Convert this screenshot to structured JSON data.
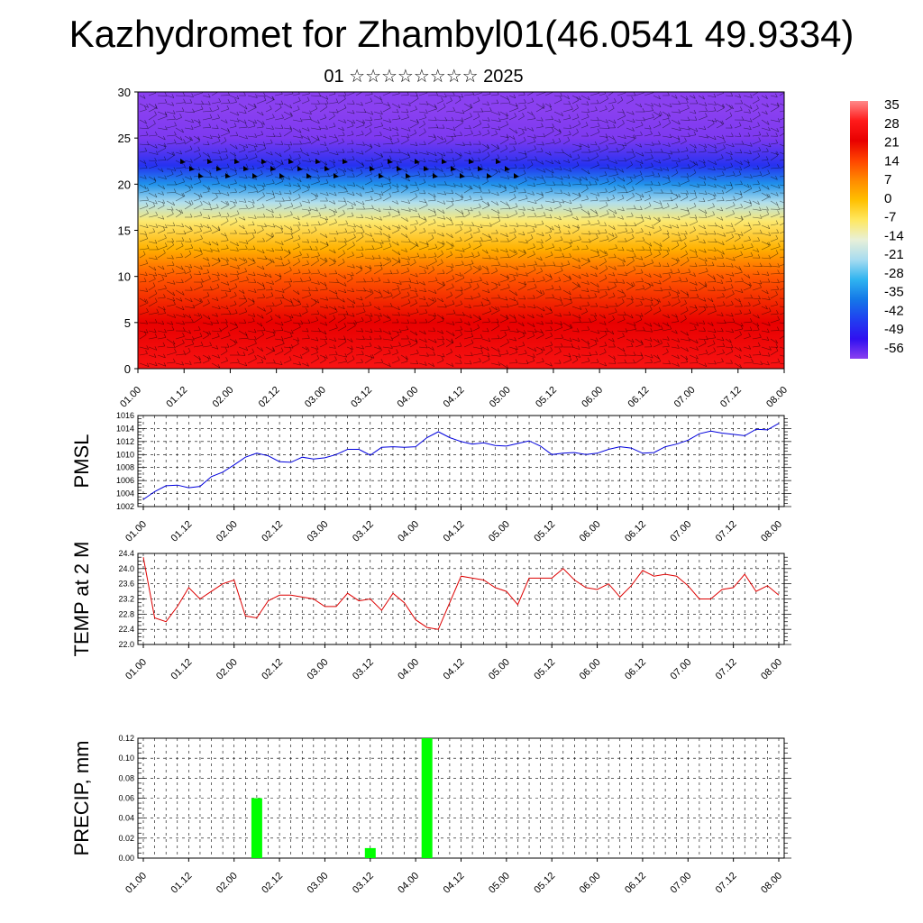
{
  "page": {
    "title": "Kazhydromet for Zhambyl01(46.0541 49.9334)",
    "subtitle": "01 ☆☆☆☆☆☆☆☆ 2025"
  },
  "colors": {
    "pmsl_line": "#0000dd",
    "temp_line": "#dd0000",
    "precip_bar": "#00ff00",
    "grid": "#000000"
  },
  "colorbar": {
    "labels": [
      "35",
      "28",
      "21",
      "14",
      "7",
      "0",
      "-7",
      "-14",
      "-21",
      "-28",
      "-35",
      "-42",
      "-49",
      "-56"
    ],
    "stops": [
      "#ff8a8a",
      "#ff1a1a",
      "#e80000",
      "#ff4400",
      "#ff8a00",
      "#ffc000",
      "#ffe860",
      "#e8f0d8",
      "#a8dcf0",
      "#30b4f0",
      "#1478e8",
      "#2040f0",
      "#3010f0",
      "#8a40f0"
    ]
  },
  "chart_data": [
    {
      "type": "heatmap",
      "name": "",
      "ylabel": "",
      "xticks": [
        "01.00",
        "01.12",
        "02.00",
        "02.12",
        "03.00",
        "03.12",
        "04.00",
        "04.12",
        "05.00",
        "05.12",
        "06.00",
        "06.12",
        "07.00",
        "07.12",
        "08.00"
      ],
      "yticks": [
        "0",
        "5",
        "10",
        "15",
        "20",
        "25",
        "30"
      ],
      "ylim": [
        0,
        30
      ],
      "value_range": [
        -56,
        35
      ],
      "layers": [
        {
          "level": 0,
          "temp": 26
        },
        {
          "level": 5,
          "temp": 21
        },
        {
          "level": 10,
          "temp": 12
        },
        {
          "level": 13,
          "temp": 2
        },
        {
          "level": 16,
          "temp": -8
        },
        {
          "level": 18,
          "temp": -20
        },
        {
          "level": 20,
          "temp": -32
        },
        {
          "level": 22,
          "temp": -44
        },
        {
          "level": 25,
          "temp": -55
        },
        {
          "level": 28,
          "temp": -57
        },
        {
          "level": 30,
          "temp": -58
        }
      ],
      "overlay": "wind barbs"
    },
    {
      "type": "line",
      "ylabel": "PMSL",
      "xticks": [
        "01.00",
        "01.12",
        "02.00",
        "02.12",
        "03.00",
        "03.12",
        "04.00",
        "04.12",
        "05.00",
        "05.12",
        "06.00",
        "06.12",
        "07.00",
        "07.12",
        "08.00"
      ],
      "yticks": [
        "1002",
        "1004",
        "1006",
        "1008",
        "1010",
        "1012",
        "1014",
        "1016"
      ],
      "ylim": [
        1002,
        1016
      ],
      "x": [
        0,
        3,
        6,
        9,
        12,
        15,
        18,
        21,
        24,
        27,
        30,
        33,
        36,
        39,
        42,
        45,
        48,
        51,
        54,
        57,
        60,
        63,
        66,
        69,
        72,
        75,
        78,
        81,
        84,
        87,
        90,
        93,
        96,
        99,
        102,
        105,
        108,
        111,
        114,
        117,
        120,
        123,
        126,
        129,
        132,
        135,
        138,
        141,
        144,
        147,
        150,
        153,
        156,
        159,
        162,
        165,
        168
      ],
      "values": [
        1003.1,
        1004.3,
        1005.2,
        1005.3,
        1004.9,
        1005.1,
        1006.6,
        1007.3,
        1008.4,
        1009.6,
        1010.2,
        1009.8,
        1008.9,
        1008.8,
        1009.6,
        1009.3,
        1009.5,
        1010.0,
        1010.8,
        1010.8,
        1009.9,
        1011.1,
        1011.2,
        1011.1,
        1011.2,
        1012.6,
        1013.5,
        1012.6,
        1012.0,
        1011.6,
        1011.8,
        1011.4,
        1011.3,
        1011.7,
        1012.1,
        1011.3,
        1010.0,
        1010.2,
        1010.3,
        1010.0,
        1010.2,
        1010.8,
        1011.2,
        1011.0,
        1010.2,
        1010.3,
        1011.2,
        1011.6,
        1012.2,
        1013.2,
        1013.6,
        1013.3,
        1013.1,
        1012.9,
        1013.9,
        1013.8,
        1014.8
      ]
    },
    {
      "type": "line",
      "ylabel": "TEMP at 2 M",
      "xticks": [
        "01.00",
        "01.12",
        "02.00",
        "02.12",
        "03.00",
        "03.12",
        "04.00",
        "04.12",
        "05.00",
        "05.12",
        "06.00",
        "06.12",
        "07.00",
        "07.12",
        "08.00"
      ],
      "yticks": [
        "22.0",
        "22.4",
        "22.8",
        "23.2",
        "23.6",
        "24.0",
        "24.4"
      ],
      "ylim": [
        22.0,
        24.4
      ],
      "x": [
        0,
        3,
        6,
        9,
        12,
        15,
        18,
        21,
        24,
        27,
        30,
        33,
        36,
        39,
        42,
        45,
        48,
        51,
        54,
        57,
        60,
        63,
        66,
        69,
        72,
        75,
        78,
        81,
        84,
        87,
        90,
        93,
        96,
        99,
        102,
        105,
        108,
        111,
        114,
        117,
        120,
        123,
        126,
        129,
        132,
        135,
        138,
        141,
        144,
        147,
        150,
        153,
        156,
        159,
        162,
        165,
        168
      ],
      "values": [
        24.3,
        22.7,
        22.6,
        23.0,
        23.5,
        23.2,
        23.4,
        23.6,
        23.7,
        22.75,
        22.7,
        23.15,
        23.3,
        23.3,
        23.25,
        23.2,
        23.0,
        23.0,
        23.35,
        23.15,
        23.2,
        22.9,
        23.35,
        23.1,
        22.65,
        22.45,
        22.4,
        23.1,
        23.8,
        23.75,
        23.7,
        23.5,
        23.4,
        23.05,
        23.75,
        23.75,
        23.75,
        24.0,
        23.7,
        23.5,
        23.45,
        23.6,
        23.25,
        23.55,
        23.95,
        23.8,
        23.85,
        23.8,
        23.55,
        23.2,
        23.2,
        23.45,
        23.5,
        23.85,
        23.4,
        23.55,
        23.3
      ]
    },
    {
      "type": "bar",
      "ylabel": "PRECIP, mm",
      "xticks": [
        "01.00",
        "01.12",
        "02.00",
        "02.12",
        "03.00",
        "03.12",
        "04.00",
        "04.12",
        "05.00",
        "05.12",
        "06.00",
        "06.12",
        "07.00",
        "07.12",
        "08.00"
      ],
      "yticks": [
        "0.00",
        "0.02",
        "0.04",
        "0.06",
        "0.08",
        "0.10",
        "0.12"
      ],
      "ylim": [
        0,
        0.12
      ],
      "x": [
        30,
        60,
        75
      ],
      "values": [
        0.06,
        0.01,
        0.12
      ]
    }
  ]
}
